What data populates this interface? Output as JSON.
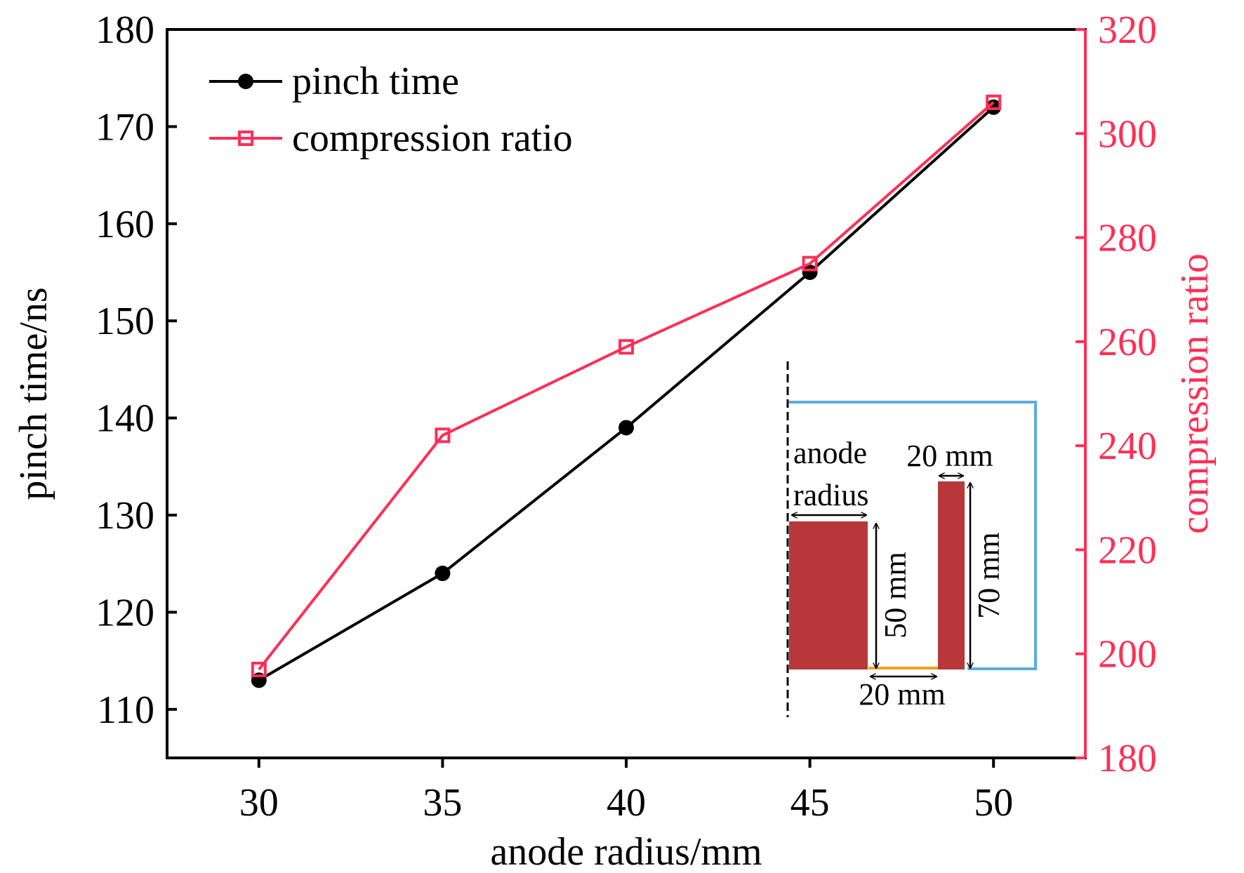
{
  "colors": {
    "pinch_time": "#000000",
    "compression_ratio": "#ff2f55",
    "right_axis": "#ff2f55",
    "inset_block": "#b8373a",
    "inset_boundary": "#5aacdf",
    "inset_gap": "#f0a020"
  },
  "chart_data": {
    "type": "line",
    "xlabel": "anode radius/mm",
    "ylabel": "pinch time/ns",
    "y2label": "compression ratio",
    "x": [
      30,
      35,
      40,
      45,
      50
    ],
    "xlim": [
      27.5,
      52.5
    ],
    "ylim": [
      105,
      180
    ],
    "y2lim": [
      180,
      320
    ],
    "x_ticks": [
      "30",
      "35",
      "40",
      "45",
      "50"
    ],
    "y_ticks": [
      "110",
      "120",
      "130",
      "140",
      "150",
      "160",
      "170",
      "180"
    ],
    "y2_ticks": [
      "180",
      "200",
      "220",
      "240",
      "260",
      "280",
      "300",
      "320"
    ],
    "grid": false,
    "legend_position": "top-left",
    "series": [
      {
        "name": "pinch time",
        "axis": "left",
        "marker": "filled-circle",
        "values": [
          113,
          124,
          139,
          155,
          172
        ]
      },
      {
        "name": "compression ratio",
        "axis": "right",
        "marker": "open-square",
        "values": [
          197,
          242,
          259,
          275,
          306
        ]
      }
    ],
    "inset": {
      "description_labels": {
        "anode_line1": "anode",
        "anode_line2": "radius",
        "gap": "20 mm",
        "cathode_width": "20 mm",
        "anode_height": "50 mm",
        "cathode_height": "70 mm"
      }
    }
  }
}
